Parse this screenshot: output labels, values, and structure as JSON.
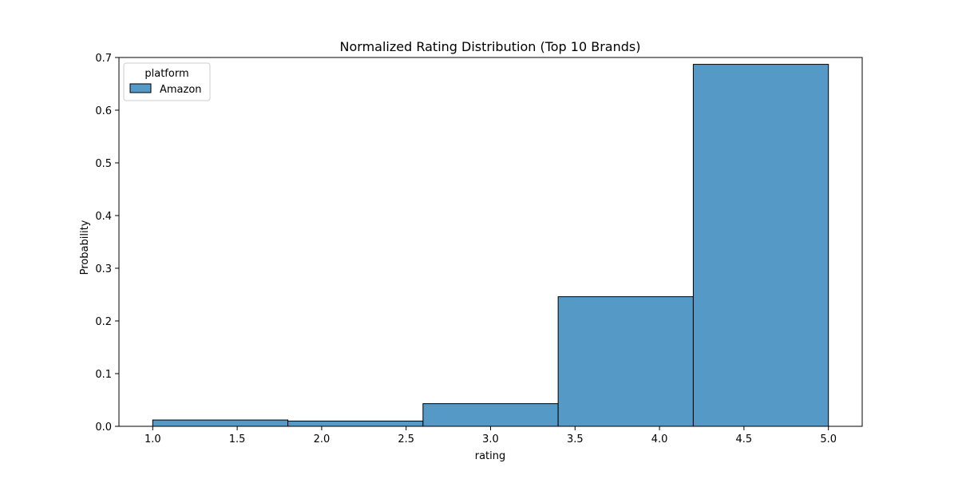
{
  "chart_data": {
    "type": "bar",
    "title": "Normalized Rating Distribution (Top 10 Brands)",
    "xlabel": "rating",
    "ylabel": "Probability",
    "xlim": [
      0.8,
      5.2
    ],
    "ylim": [
      0,
      0.7
    ],
    "xticks": [
      "1.0",
      "1.5",
      "2.0",
      "2.5",
      "3.0",
      "3.5",
      "4.0",
      "4.5",
      "5.0"
    ],
    "xtick_values": [
      1.0,
      1.5,
      2.0,
      2.5,
      3.0,
      3.5,
      4.0,
      4.5,
      5.0
    ],
    "yticks": [
      "0.0",
      "0.1",
      "0.2",
      "0.3",
      "0.4",
      "0.5",
      "0.6",
      "0.7"
    ],
    "ytick_values": [
      0.0,
      0.1,
      0.2,
      0.3,
      0.4,
      0.5,
      0.6,
      0.7
    ],
    "bins": [
      [
        1.0,
        1.8
      ],
      [
        1.8,
        2.6
      ],
      [
        2.6,
        3.4
      ],
      [
        3.4,
        4.2
      ],
      [
        4.2,
        5.0
      ]
    ],
    "series": [
      {
        "name": "Amazon",
        "values": [
          0.012,
          0.01,
          0.043,
          0.246,
          0.687
        ]
      }
    ],
    "legend": {
      "title": "platform",
      "placement": "top-left"
    },
    "bar_color": "#5599c7",
    "edge_color": "#000000",
    "grid": false
  }
}
